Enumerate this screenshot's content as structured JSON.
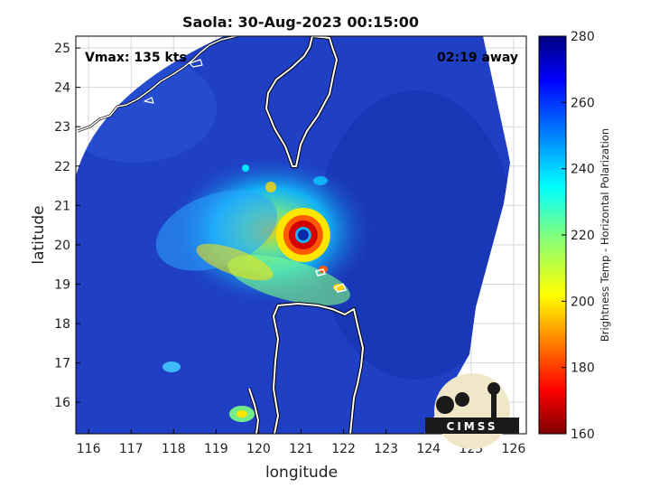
{
  "title": "Saola: 30-Aug-2023 00:15:00",
  "annotations": {
    "vmax": "Vmax: 135 kts",
    "time_away": "02:19 away"
  },
  "axes": {
    "xlabel": "longitude",
    "ylabel": "latitude",
    "xlim": [
      115.7,
      126.3
    ],
    "ylim": [
      15.2,
      25.3
    ],
    "xticks": [
      "116",
      "117",
      "118",
      "119",
      "120",
      "121",
      "122",
      "123",
      "124",
      "125",
      "126"
    ],
    "yticks": [
      "16",
      "17",
      "18",
      "19",
      "20",
      "21",
      "22",
      "23",
      "24",
      "25"
    ]
  },
  "colorbar": {
    "label": "Brightness Temp - Horizontal Polarization",
    "range": [
      160,
      280
    ],
    "ticks": [
      "160",
      "180",
      "200",
      "220",
      "240",
      "260",
      "280"
    ],
    "colormap": "jet"
  },
  "storm_center": {
    "lon": 121.05,
    "lat": 20.25
  },
  "logo": {
    "text": "CIMSS"
  },
  "colors": {
    "background_scan": "#1f3fc4",
    "eye": "#0a28a8",
    "eyewall": "#d40000"
  }
}
